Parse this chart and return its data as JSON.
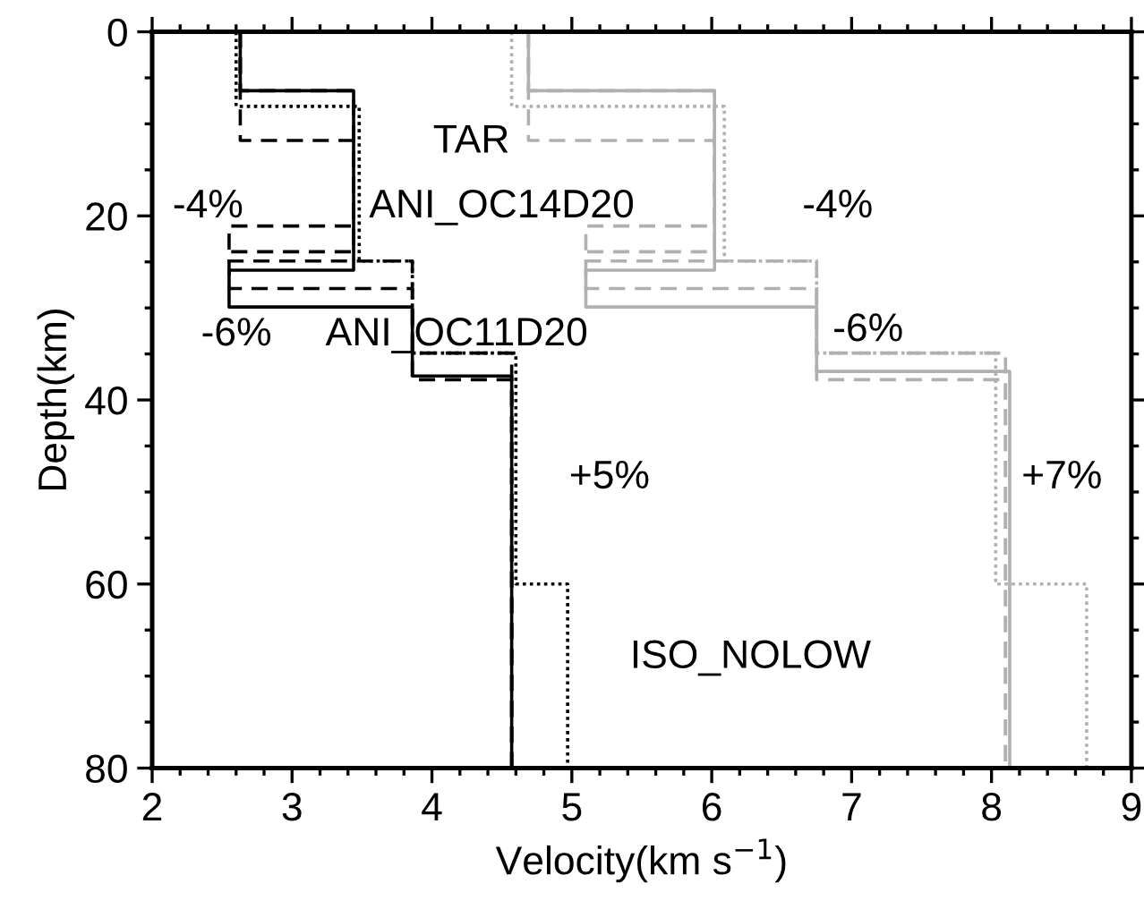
{
  "chart_data": {
    "type": "line",
    "xlabel": "Velocity(km s$^{−1}$)",
    "ylabel": "Depth(km)",
    "xlim": [
      2,
      9
    ],
    "ylim": [
      80,
      0
    ],
    "xticks": [
      2,
      3,
      4,
      5,
      6,
      7,
      8,
      9
    ],
    "yticks": [
      0,
      20,
      40,
      60,
      80
    ],
    "grid": false,
    "legend": false,
    "marker": "none",
    "series": [
      {
        "color": "#000000",
        "line_style": "solid",
        "x": [
          2.63,
          2.63,
          3.44,
          3.44,
          2.55,
          2.55,
          3.86,
          3.86,
          4.57,
          4.57
        ],
        "values": [
          0,
          6.4,
          6.4,
          25.9,
          25.9,
          29.9,
          29.9,
          37.4,
          37.4,
          80
        ]
      },
      {
        "color": "#000000",
        "line_style": "dashed",
        "x": [
          2.63,
          2.63,
          3.44,
          3.44,
          2.55,
          2.55,
          3.86,
          3.86,
          4.57,
          4.57
        ],
        "values": [
          0,
          6.4,
          6.4,
          21.1,
          21.1,
          24.9,
          24.9,
          34.9,
          34.9,
          80
        ]
      },
      {
        "color": "#000000",
        "line_style": "dashed",
        "x": [
          2.63,
          2.63,
          3.44,
          3.44,
          2.55,
          2.55,
          3.86,
          3.86,
          4.57,
          4.57
        ],
        "values": [
          0,
          11.8,
          11.8,
          23.9,
          23.9,
          27.9,
          27.9,
          37.8,
          37.8,
          80
        ]
      },
      {
        "color": "#000000",
        "line_style": "dotted",
        "x": [
          2.6,
          2.6,
          3.48,
          3.48,
          3.86,
          3.86,
          4.6,
          4.6,
          4.97,
          4.97
        ],
        "values": [
          0,
          8.1,
          8.1,
          24.9,
          24.9,
          34.9,
          34.9,
          60,
          60,
          80
        ]
      },
      {
        "color": "#b0b0b0",
        "line_style": "solid",
        "x": [
          4.69,
          4.69,
          6.02,
          6.02,
          5.1,
          5.1,
          6.75,
          6.75,
          8.13,
          8.13
        ],
        "values": [
          0,
          6.4,
          6.4,
          25.9,
          25.9,
          29.9,
          29.9,
          36.9,
          36.9,
          80
        ]
      },
      {
        "color": "#b0b0b0",
        "line_style": "dashed",
        "x": [
          4.69,
          4.69,
          6.02,
          6.02,
          5.1,
          5.1,
          6.75,
          6.75,
          8.1,
          8.1
        ],
        "values": [
          0,
          6.4,
          6.4,
          21.1,
          21.1,
          24.9,
          24.9,
          34.9,
          34.9,
          80
        ]
      },
      {
        "color": "#b0b0b0",
        "line_style": "dashed",
        "x": [
          4.69,
          4.69,
          6.02,
          6.02,
          5.1,
          5.1,
          6.75,
          6.75,
          8.1,
          8.1
        ],
        "values": [
          0,
          11.8,
          11.8,
          23.9,
          23.9,
          27.9,
          27.9,
          37.8,
          37.8,
          80
        ]
      },
      {
        "color": "#b0b0b0",
        "line_style": "dotted",
        "x": [
          4.57,
          4.57,
          6.09,
          6.09,
          6.75,
          6.75,
          8.03,
          8.03,
          8.68,
          8.68
        ],
        "values": [
          0,
          8.1,
          8.1,
          24.9,
          24.9,
          34.9,
          34.9,
          60,
          60,
          80
        ]
      }
    ],
    "annotations": [
      "TAR",
      "ANI_OC14D20",
      "-4%",
      "-4%",
      "-6%",
      "ANI_OC11D20",
      "-6%",
      "+5%",
      "+7%",
      "ISO_NOLOW"
    ]
  }
}
